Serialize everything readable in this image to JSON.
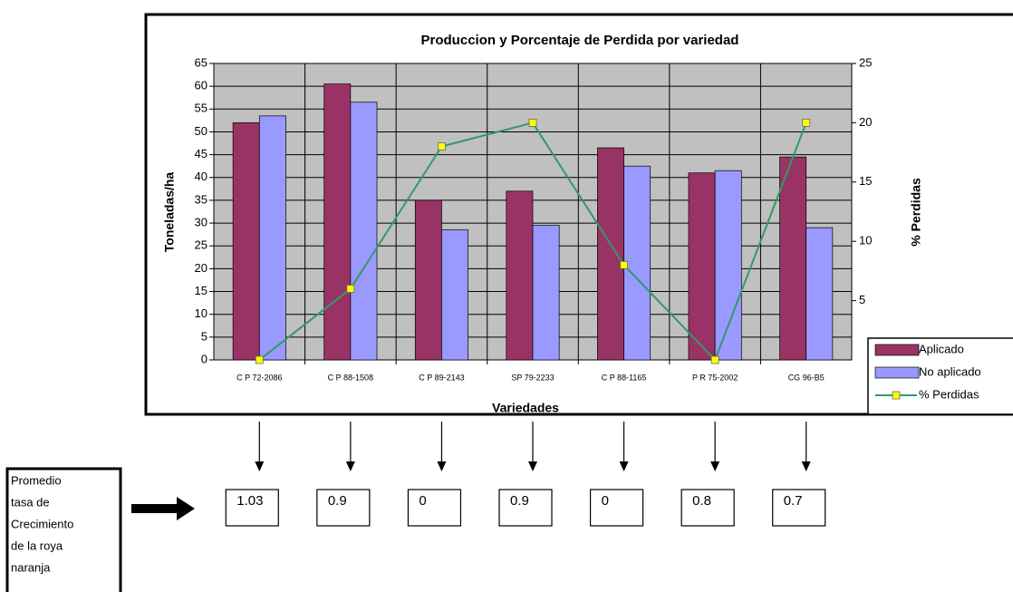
{
  "chart_data": {
    "type": "bar",
    "title": "Produccion y Porcentaje de Perdida por variedad",
    "x_label": "Variedades",
    "y_label": "Toneladas/ha",
    "y2_label": "% Perdidas",
    "categories": [
      "C P 72-2086",
      "C P 88-1508",
      "C P 89-2143",
      "SP 79-2233",
      "C P 88-1165",
      "P R 75-2002",
      "CG 96-B5"
    ],
    "series": [
      {
        "name": "Aplicado",
        "type": "bar",
        "color": "#993366",
        "values": [
          52,
          60.5,
          35,
          37,
          46.5,
          41,
          44.5
        ]
      },
      {
        "name": "No aplicado",
        "type": "bar",
        "color": "#9999ff",
        "values": [
          53.5,
          56.5,
          28.5,
          29.5,
          42.5,
          41.5,
          29
        ]
      },
      {
        "name": "% Perdidas",
        "type": "line",
        "axis": "y2",
        "color": "#339966",
        "marker_color": "#ffff00",
        "values": [
          0,
          6,
          18,
          20,
          8,
          0,
          20
        ]
      }
    ],
    "ylim": [
      0,
      65
    ],
    "yticks": [
      0,
      5,
      10,
      15,
      20,
      25,
      30,
      35,
      40,
      45,
      50,
      55,
      60,
      65
    ],
    "y2lim": [
      0,
      25
    ],
    "y2ticks": [
      5,
      10,
      15,
      20,
      25
    ],
    "grid": true,
    "legend": "right"
  },
  "growth_rates": [
    1.03,
    0.9,
    0,
    0.9,
    0,
    0.8,
    0.7
  ],
  "note_lines": [
    "Promedio",
    " tasa de",
    "Crecimiento",
    "de la roya",
    "naranja"
  ]
}
